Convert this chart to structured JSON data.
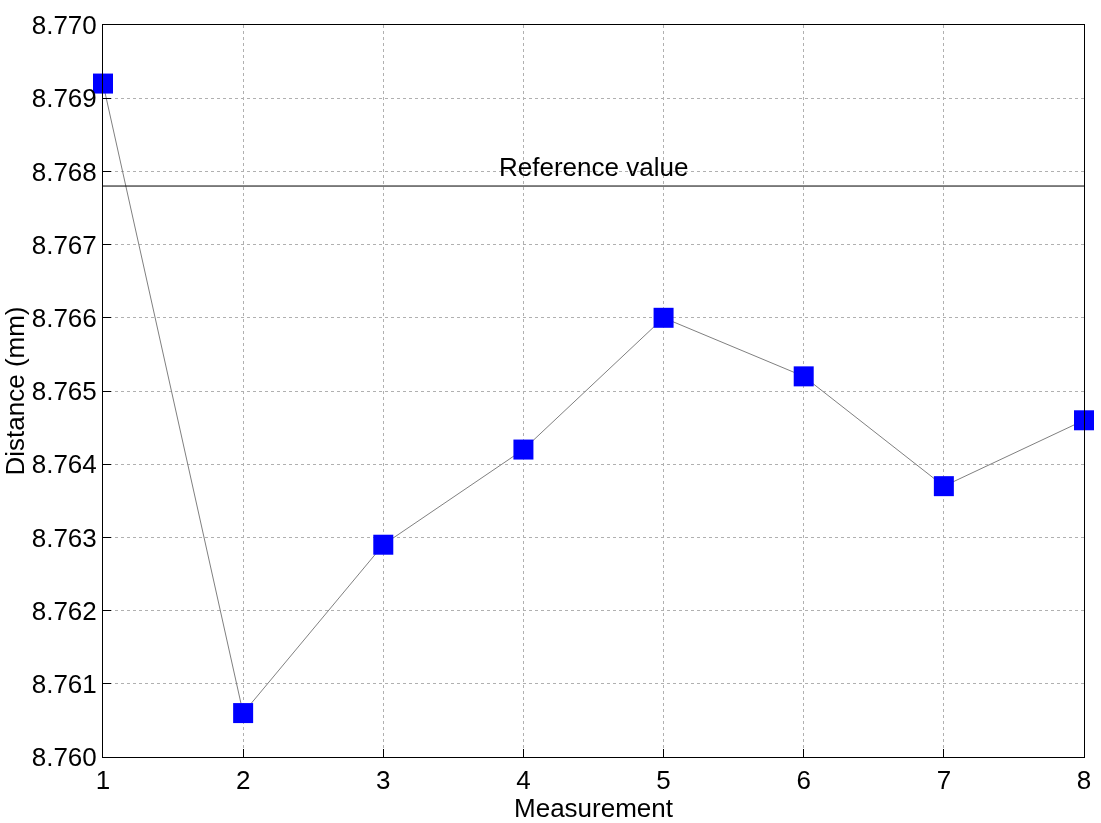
{
  "chart_data": {
    "type": "line",
    "xlabel": "Measurement",
    "ylabel": "Distance (mm)",
    "x": [
      1,
      2,
      3,
      4,
      5,
      6,
      7,
      8
    ],
    "series": [
      {
        "color": "#0000ff",
        "values": [
          8.7692,
          8.7606,
          8.7629,
          8.7642,
          8.766,
          8.7652,
          8.7637,
          8.7646
        ]
      }
    ],
    "xlim": [
      1,
      8
    ],
    "xticks": [
      1,
      2,
      3,
      4,
      5,
      6,
      7,
      8
    ],
    "ylim": [
      8.76,
      8.77
    ],
    "yticks": [
      {
        "value": 8.76,
        "label": "8.760"
      },
      {
        "value": 8.761,
        "label": "8.761"
      },
      {
        "value": 8.762,
        "label": "8.762"
      },
      {
        "value": 8.763,
        "label": "8.763"
      },
      {
        "value": 8.764,
        "label": "8.764"
      },
      {
        "value": 8.765,
        "label": "8.765"
      },
      {
        "value": 8.766,
        "label": "8.766"
      },
      {
        "value": 8.767,
        "label": "8.767"
      },
      {
        "value": 8.768,
        "label": "8.768"
      },
      {
        "value": 8.769,
        "label": "8.769"
      },
      {
        "value": 8.77,
        "label": "8.770"
      }
    ],
    "ref_lines": [
      {
        "axis": "y",
        "value": 8.7678,
        "label": "Reference value",
        "color": "#000000"
      }
    ],
    "grid": true,
    "marker": "square",
    "line_style": "solid"
  }
}
